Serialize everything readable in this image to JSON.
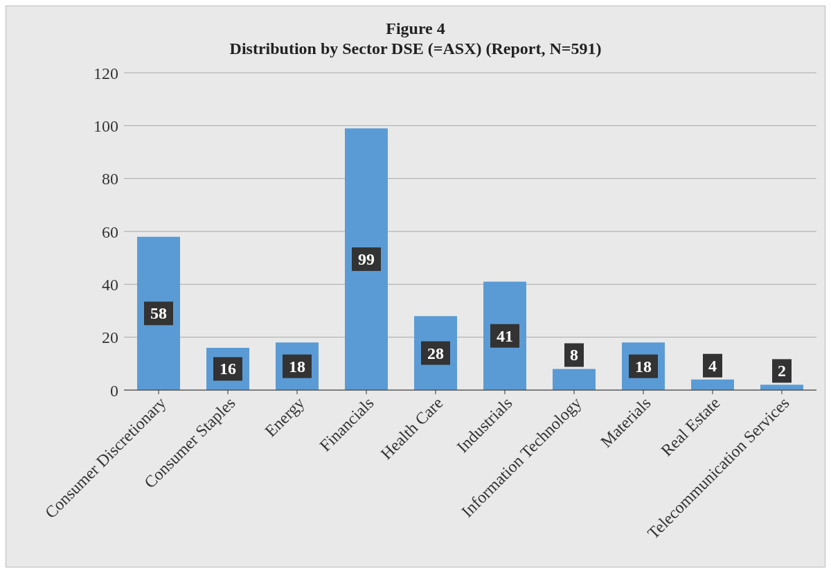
{
  "chart_data": {
    "type": "bar",
    "title": "Figure 4",
    "subtitle": "Distribution by Sector DSE (=ASX) (Report, N=591)",
    "categories": [
      "Consumer Discretionary",
      "Consumer Staples",
      "Energy",
      "Financials",
      "Health Care",
      "Industrials",
      "Information Technology",
      "Materials",
      "Real Estate",
      "Telecommunication Services"
    ],
    "values": [
      58,
      16,
      18,
      99,
      28,
      41,
      8,
      18,
      4,
      2
    ],
    "color": "#5b9bd5",
    "ylim": [
      0,
      120
    ],
    "yticks": [
      0,
      20,
      40,
      60,
      80,
      100,
      120
    ],
    "grid": "y",
    "data_labels": true
  }
}
